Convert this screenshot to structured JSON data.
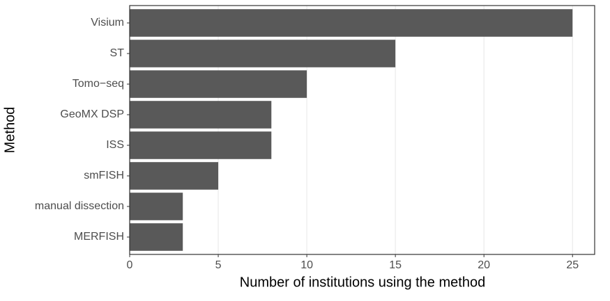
{
  "chart_data": {
    "type": "barh",
    "x_label": "Number of institutions using the method",
    "y_label": "Method",
    "categories": [
      "Visium",
      "ST",
      "Tomo−seq",
      "GeoMX DSP",
      "ISS",
      "smFISH",
      "manual dissection",
      "MERFISH"
    ],
    "values": [
      25,
      15,
      10,
      8,
      8,
      5,
      3,
      3
    ],
    "color": "#595959",
    "xlim": [
      0,
      26.25
    ],
    "xticks": [
      0,
      5,
      10,
      15,
      20,
      25
    ],
    "grid": true
  }
}
